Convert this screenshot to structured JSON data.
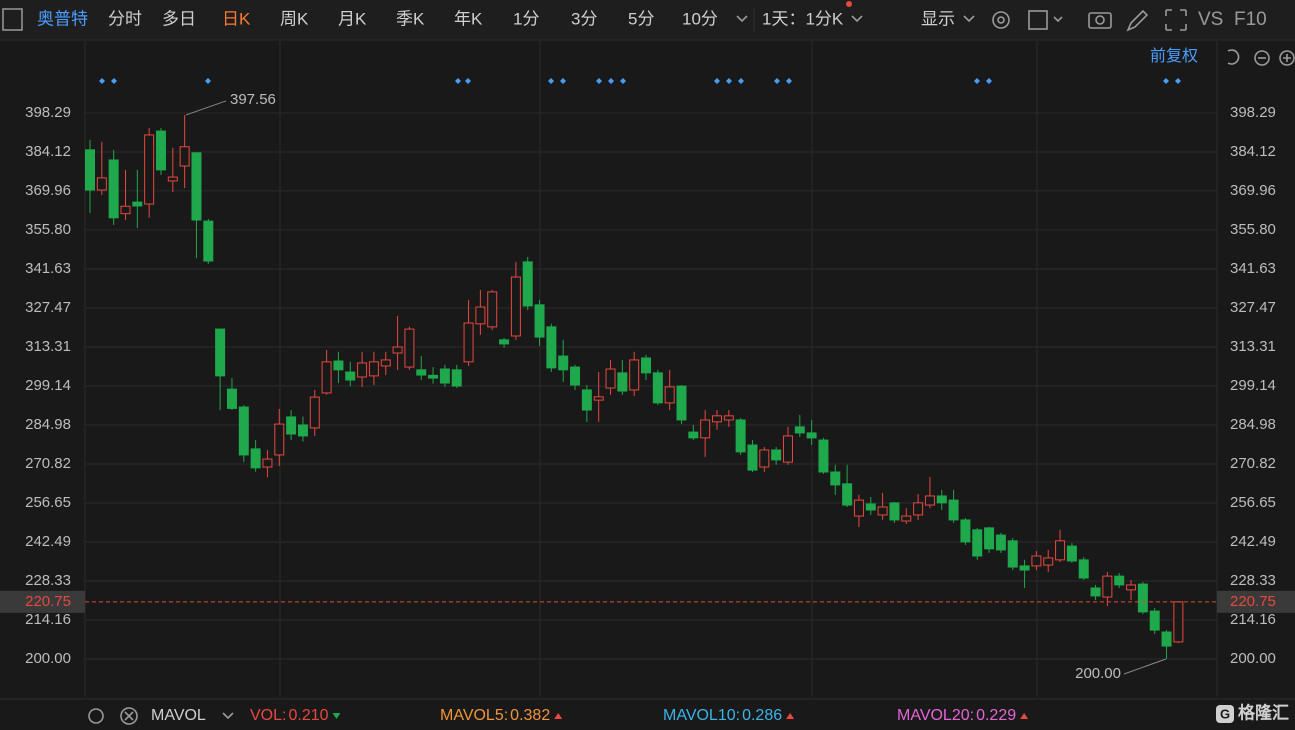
{
  "toolbar": {
    "stock": "奥普特",
    "periods": [
      "分时",
      "多日",
      "日K",
      "周K",
      "月K",
      "季K",
      "年K",
      "1分",
      "3分",
      "5分",
      "10分"
    ],
    "active": 2,
    "interval": "1天：1分K",
    "display": "显示",
    "vs": "VS",
    "f10": "F10",
    "adjust": "前复权"
  },
  "chart_data": {
    "type": "candlestick",
    "open": [
      384.9,
      370.3,
      381.2,
      361.7,
      365.9,
      365.2,
      391.7,
      373.6,
      379,
      383.8,
      359,
      319.8,
      298,
      291.5,
      276.3,
      269.7,
      274.1,
      287.9,
      285,
      283.9,
      296.6,
      308.2,
      304.2,
      302.4,
      302.8,
      306.4,
      311.1,
      306,
      305,
      303,
      305.3,
      305,
      307.9,
      321.7,
      320.6,
      315.9,
      317.3,
      344.2,
      328.6,
      320.6,
      310,
      306,
      297.7,
      294,
      298.4,
      303.9,
      297.7,
      309.3,
      303.9,
      293,
      299.1,
      282.4,
      280.3,
      286.1,
      286.8,
      286.8,
      277.7,
      269.7,
      275.9,
      271.5,
      284.3,
      282.1,
      279.5,
      267.9,
      263.6,
      251.9,
      256.3,
      252.3,
      256.7,
      250.1,
      252.3,
      255.9,
      259.2,
      257.7,
      250.5,
      246.9,
      247.6,
      245,
      242.9,
      233.8,
      233.8,
      234.1,
      236,
      241,
      236,
      225.8,
      222.5,
      230.1,
      225.1,
      227.2,
      217.4,
      209.8,
      206.2
    ],
    "high": [
      388.5,
      387.8,
      384.9,
      377.6,
      377.6,
      392.8,
      392.8,
      385.6,
      397.56,
      384,
      359.8,
      319.8,
      302,
      292.2,
      279.5,
      275.9,
      290.8,
      290.4,
      288,
      297.7,
      312.2,
      311.5,
      307.9,
      311.5,
      311.5,
      311.5,
      324.6,
      320.6,
      310,
      306,
      306.8,
      306.8,
      330.4,
      334,
      334,
      316.6,
      344.2,
      346,
      330.4,
      321.7,
      315.9,
      306.8,
      299.5,
      304.2,
      308.6,
      308.6,
      311.5,
      310.4,
      305,
      305,
      299.5,
      285,
      290.4,
      290.4,
      290.4,
      287.5,
      279.5,
      277,
      277,
      284.3,
      288.6,
      286.8,
      280.3,
      270.5,
      270.5,
      259.6,
      258.8,
      260.3,
      257,
      254.8,
      259.9,
      266.1,
      261.4,
      261.4,
      251.2,
      247.6,
      248,
      245.8,
      243.9,
      236,
      239.2,
      239.6,
      246.9,
      242.1,
      237,
      226.9,
      231.6,
      231.2,
      228.7,
      228,
      218.5,
      210.5,
      220.75
    ],
    "low": [
      362,
      368.5,
      357.6,
      359.4,
      356.5,
      360.2,
      375.8,
      369.6,
      371,
      345.6,
      343.5,
      290.4,
      290.4,
      271.5,
      268,
      266,
      270.1,
      279.5,
      279,
      281,
      295.9,
      300.2,
      299,
      298.8,
      299.5,
      303.1,
      305,
      305,
      301.3,
      300,
      298.8,
      298.4,
      306.4,
      317.7,
      319.5,
      313,
      315.9,
      326.7,
      313.7,
      304.2,
      300.6,
      297.7,
      286.1,
      286.1,
      295.9,
      295.9,
      295.5,
      301.3,
      292.2,
      290.4,
      285.3,
      279.5,
      273.4,
      283.2,
      284.3,
      274.1,
      267.9,
      267.9,
      270.5,
      270.5,
      280.6,
      277.7,
      267.2,
      259.6,
      255.2,
      247.9,
      252.3,
      250.5,
      249.4,
      249,
      250.5,
      254.8,
      254.1,
      249.4,
      241.4,
      236,
      238.5,
      238.5,
      232.3,
      225.8,
      232.3,
      231.6,
      235.2,
      234.9,
      228.7,
      221.4,
      219.2,
      225.8,
      221.4,
      216.3,
      209.1,
      200,
      205.8
    ],
    "close": [
      370.3,
      374.7,
      360.2,
      364.4,
      364.5,
      390.3,
      377.6,
      375,
      386,
      359.4,
      344.5,
      302.8,
      291,
      274.1,
      269.4,
      272.6,
      285.3,
      281.7,
      281,
      295.1,
      307.9,
      305,
      301.3,
      307.5,
      307.9,
      308.6,
      313.3,
      319.8,
      303.1,
      302,
      300.2,
      299.1,
      322,
      327.8,
      333.3,
      314.4,
      338.7,
      328.2,
      316.9,
      305.7,
      305,
      299.5,
      290.4,
      295.2,
      305.3,
      297.3,
      308.6,
      303.9,
      293,
      298.8,
      286.8,
      280.3,
      286.8,
      288.3,
      288.3,
      275.2,
      268.6,
      275.9,
      272.3,
      281,
      282.1,
      280.3,
      267.9,
      263.2,
      255.9,
      257.7,
      254.1,
      255.2,
      250.5,
      251.9,
      256.7,
      259.2,
      256.7,
      250.5,
      242.5,
      237.4,
      240,
      239.6,
      233.4,
      232.3,
      237.4,
      236.7,
      242.9,
      235.6,
      229.4,
      222.9,
      230.1,
      226.9,
      226.9,
      217.1,
      210.5,
      204.7,
      220.75
    ],
    "up_color": "#e8483e",
    "down_color": "#1fa84c",
    "ylim": [
      186.2,
      414.6
    ],
    "yticks": [
      {
        "value": 200,
        "label": "200.00"
      },
      214.16,
      228.33,
      242.49,
      256.65,
      270.82,
      284.98,
      299.14,
      313.31,
      327.47,
      341.63,
      {
        "value": 355.8,
        "label": "355.80"
      },
      369.96,
      384.12,
      398.29
    ],
    "grid": true,
    "last_price": 220.75,
    "annotations": [
      {
        "value": 397.56,
        "label": "397.56"
      },
      {
        "value": 200,
        "label": "200.00"
      }
    ]
  },
  "indicators": {
    "name": "MAVOL",
    "items": [
      {
        "label": "VOL:",
        "value": "0.210",
        "color": "#e8483e",
        "trend": "down"
      },
      {
        "label": "MAVOL5:",
        "value": "0.382",
        "color": "#f0953a",
        "trend": "up"
      },
      {
        "label": "MAVOL10:",
        "value": "0.286",
        "color": "#3bb4e8",
        "trend": "up"
      },
      {
        "label": "MAVOL20:",
        "value": "0.229",
        "color": "#e466d6",
        "trend": "up"
      }
    ]
  },
  "watermark": "格隆汇"
}
